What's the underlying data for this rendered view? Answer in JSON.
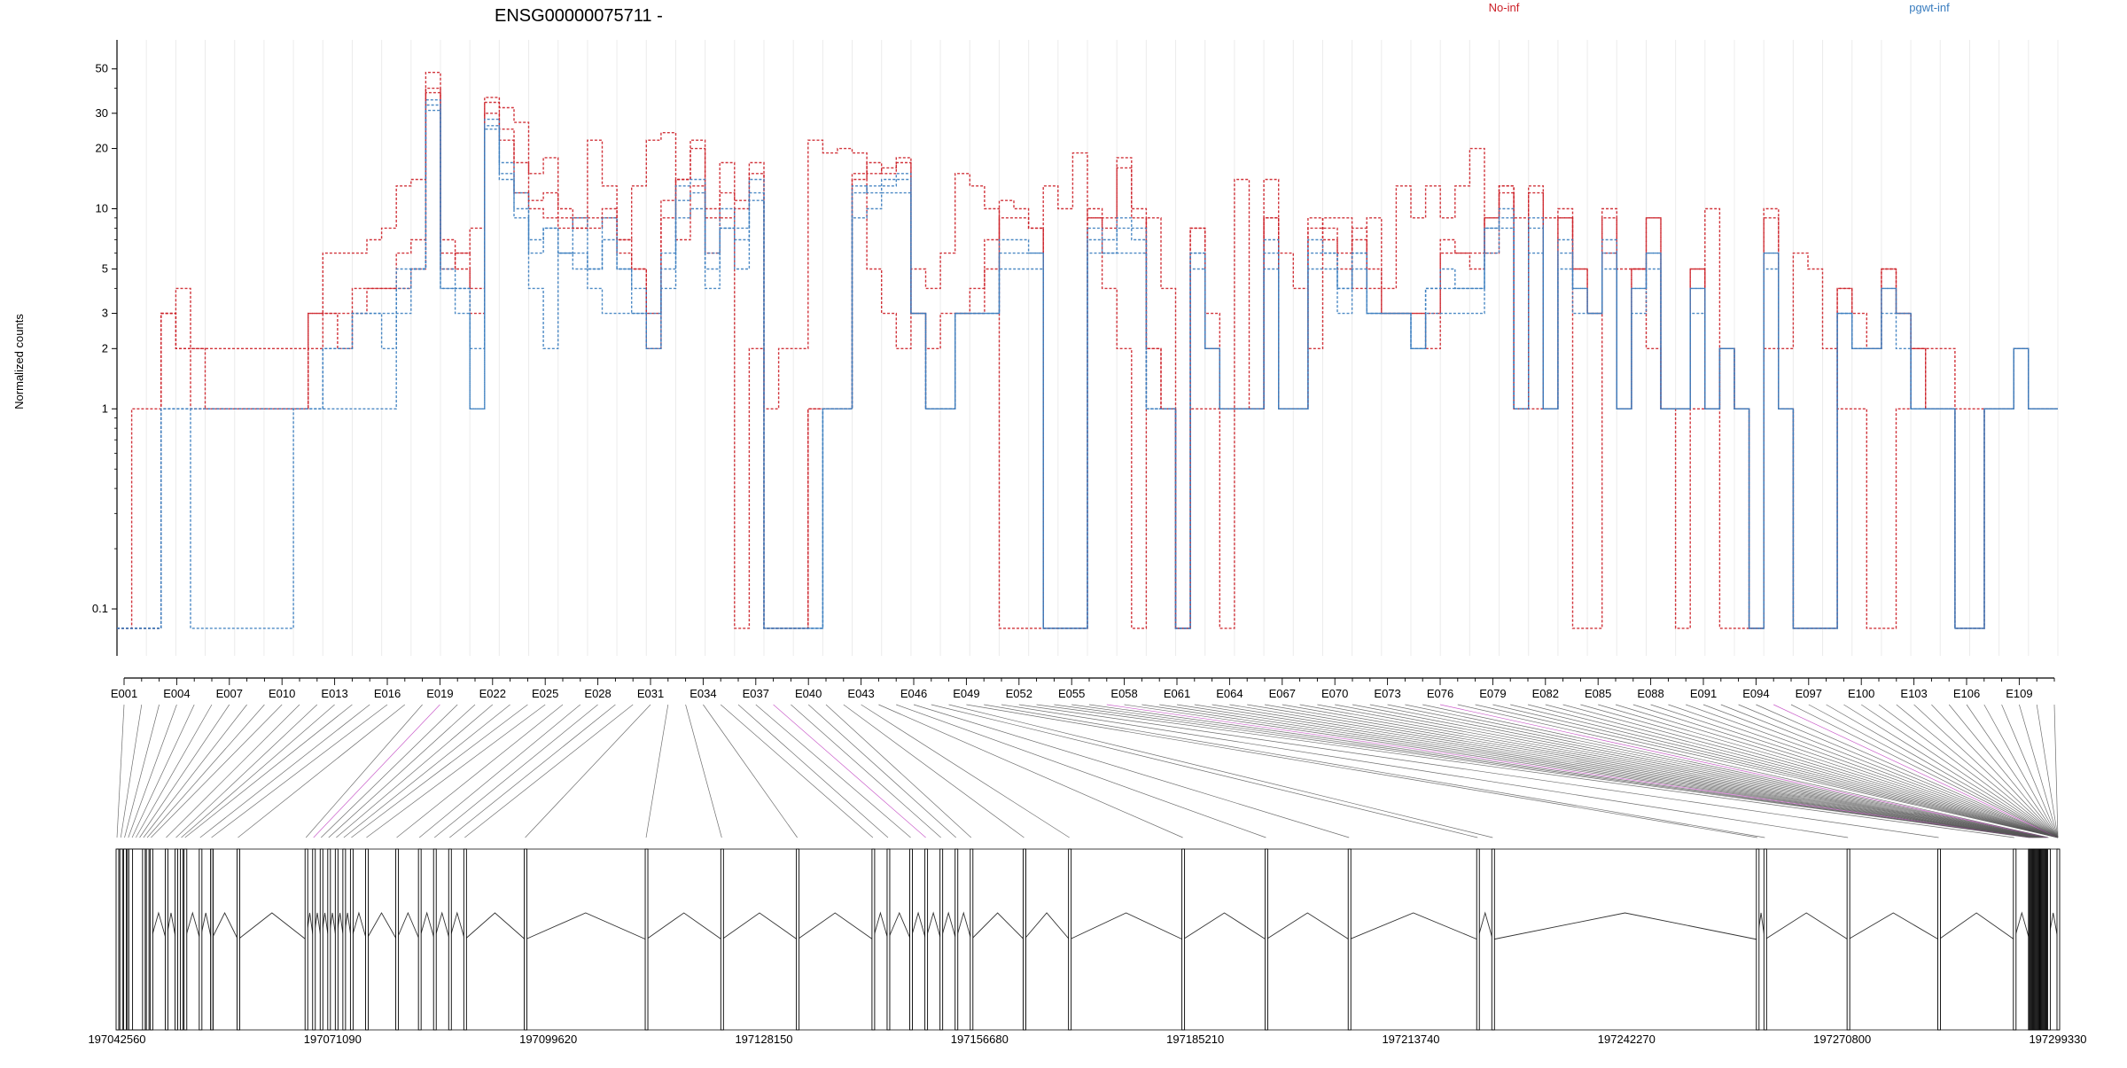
{
  "chart_data": {
    "type": "line",
    "title": "ENSG00000075711 -",
    "ylabel": "Normalized counts",
    "yscale": "log",
    "ylim": [
      0.07,
      65
    ],
    "yticks": [
      0.1,
      1,
      2,
      3,
      5,
      10,
      20,
      30,
      50
    ],
    "ytick_labels": [
      "0.1",
      "1",
      "2",
      "3",
      "5",
      "10",
      "20",
      "30",
      "50"
    ],
    "legend": [
      {
        "label": "No-inf",
        "color": "#cc1f27"
      },
      {
        "label": "pgwt-inf",
        "color": "#3a7dbf"
      }
    ],
    "exon_labels": [
      "E001",
      "E004",
      "E007",
      "E010",
      "E013",
      "E016",
      "E019",
      "E022",
      "E025",
      "E028",
      "E031",
      "E034",
      "E037",
      "E040",
      "E043",
      "E046",
      "E049",
      "E052",
      "E055",
      "E058",
      "E061",
      "E064",
      "E067",
      "E070",
      "E073",
      "E076",
      "E079",
      "E082",
      "E085",
      "E088",
      "E091",
      "E094",
      "E097",
      "E100",
      "E103",
      "E106",
      "E109"
    ],
    "genomic_coordinates": [
      "197042560",
      "197071090",
      "197099620",
      "197128150",
      "197156680",
      "197185210",
      "197213740",
      "197242270",
      "197270800",
      "197299330"
    ],
    "genomic_range": [
      197042560,
      197299330
    ],
    "series": [
      {
        "name": "No-inf",
        "color": "#cc1f27",
        "values": [
          0.08,
          0.08,
          0.08,
          3,
          2,
          2,
          2,
          2,
          2,
          2,
          2,
          2,
          2,
          3,
          3,
          2,
          4,
          4,
          4,
          4,
          5,
          38,
          6,
          5,
          3,
          34,
          25,
          12,
          10,
          9,
          8,
          8,
          8,
          9,
          6,
          5,
          3,
          9,
          14,
          22,
          6,
          9,
          10,
          15,
          0.08,
          0.08,
          0.08,
          1,
          1,
          1,
          14,
          15,
          16,
          18,
          3,
          1,
          1,
          3,
          3,
          5,
          9,
          9,
          8,
          0.08,
          0.08,
          0.08,
          9,
          8,
          16,
          9,
          2,
          1,
          0.08,
          8,
          2,
          1,
          1,
          1,
          9,
          1,
          1,
          9,
          7,
          6,
          8,
          5,
          3,
          3,
          3,
          2,
          6,
          6,
          5,
          9,
          13,
          1,
          12,
          1,
          9,
          5,
          3,
          9,
          1,
          5,
          9,
          1,
          1,
          5,
          1,
          2,
          1,
          0.08,
          9,
          1,
          0.08,
          0.08,
          0.08,
          4,
          3,
          2,
          5,
          3,
          2,
          1,
          1,
          0.08,
          0.08,
          1,
          1,
          2,
          1,
          1
        ]
      },
      {
        "name": "No-inf",
        "color": "#cc1f27",
        "values": [
          0.08,
          1,
          1,
          3,
          4,
          2,
          1,
          1,
          1,
          1,
          1,
          1,
          1,
          3,
          6,
          6,
          6,
          7,
          8,
          13,
          14,
          48,
          7,
          6,
          8,
          36,
          32,
          27,
          15,
          18,
          10,
          8,
          22,
          13,
          7,
          13,
          22,
          24,
          7,
          13,
          10,
          17,
          0.08,
          2,
          1,
          2,
          2,
          22,
          19,
          20,
          19,
          5,
          3,
          2,
          5,
          4,
          6,
          15,
          13,
          10,
          0.08,
          0.08,
          0.08,
          13,
          10,
          19,
          9,
          4,
          2,
          0.08,
          9,
          4,
          0.08,
          1,
          1,
          0.08,
          14,
          1,
          14,
          6,
          4,
          2,
          9,
          9,
          4,
          9,
          4,
          13,
          9,
          13,
          9,
          13,
          20,
          6,
          13,
          9,
          1,
          9,
          10,
          0.08,
          0.08,
          6,
          5,
          5,
          2,
          1,
          0.08,
          1,
          10,
          0.08,
          0.08,
          0.08,
          2,
          2,
          6,
          5,
          2,
          1,
          1,
          0.08,
          0.08,
          1,
          2,
          2,
          2,
          1,
          1
        ]
      },
      {
        "name": "No-inf",
        "color": "#cc1f27",
        "values": [
          0.08,
          0.08,
          0.08,
          3,
          2,
          1,
          1,
          1,
          1,
          1,
          1,
          1,
          1,
          2,
          3,
          3,
          3,
          4,
          4,
          6,
          7,
          40,
          5,
          6,
          4,
          30,
          22,
          17,
          11,
          12,
          9,
          9,
          9,
          10,
          7,
          5,
          2,
          11,
          14,
          20,
          9,
          12,
          11,
          17,
          0.08,
          0.08,
          0.08,
          1,
          1,
          1,
          15,
          17,
          15,
          17,
          3,
          2,
          3,
          3,
          4,
          7,
          11,
          10,
          8,
          0.08,
          0.08,
          0.08,
          10,
          9,
          18,
          10,
          2,
          1,
          0.08,
          8,
          3,
          1,
          1,
          1,
          9,
          1,
          1,
          8,
          8,
          5,
          7,
          4,
          3,
          3,
          3,
          3,
          7,
          6,
          6,
          9,
          12,
          1,
          13,
          1,
          9,
          5,
          3,
          10,
          1,
          5,
          9,
          1,
          1,
          5,
          1,
          2,
          1,
          0.08,
          10,
          1,
          0.08,
          0.08,
          0.08,
          4,
          2,
          2,
          5,
          3,
          2,
          1,
          1,
          0.08,
          0.08,
          1,
          1,
          2,
          1,
          1
        ]
      },
      {
        "name": "pgwt-inf",
        "color": "#3a7dbf",
        "values": [
          0.08,
          0.08,
          0.08,
          1,
          1,
          1,
          1,
          1,
          1,
          1,
          1,
          1,
          1,
          1,
          2,
          2,
          3,
          3,
          3,
          5,
          5,
          35,
          4,
          4,
          2,
          25,
          14,
          10,
          7,
          8,
          6,
          6,
          5,
          7,
          5,
          4,
          3,
          6,
          11,
          12,
          6,
          10,
          7,
          12,
          0.08,
          0.08,
          0.08,
          0.08,
          1,
          1,
          13,
          12,
          14,
          14,
          3,
          1,
          1,
          3,
          3,
          3,
          6,
          6,
          6,
          0.08,
          0.08,
          0.08,
          8,
          7,
          8,
          8,
          1,
          1,
          0.08,
          6,
          2,
          1,
          1,
          1,
          6,
          1,
          1,
          6,
          6,
          4,
          6,
          3,
          3,
          3,
          2,
          4,
          4,
          4,
          4,
          8,
          9,
          1,
          8,
          1,
          6,
          4,
          3,
          6,
          1,
          4,
          6,
          1,
          1,
          4,
          1,
          2,
          1,
          0.08,
          6,
          1,
          0.08,
          0.08,
          0.08,
          3,
          2,
          2,
          4,
          3,
          1,
          1,
          1,
          0.08,
          0.08,
          1,
          1,
          2,
          1,
          1
        ]
      },
      {
        "name": "pgwt-inf",
        "color": "#3a7dbf",
        "values": [
          0.08,
          0.08,
          0.08,
          1,
          1,
          0.08,
          0.08,
          0.08,
          0.08,
          0.08,
          0.08,
          0.08,
          1,
          1,
          2,
          2,
          3,
          3,
          2,
          4,
          5,
          31,
          5,
          4,
          1,
          28,
          17,
          12,
          6,
          8,
          6,
          5,
          5,
          9,
          5,
          3,
          2,
          5,
          13,
          14,
          5,
          8,
          8,
          14,
          0.08,
          0.08,
          0.08,
          0.08,
          1,
          1,
          12,
          13,
          13,
          15,
          3,
          1,
          1,
          3,
          3,
          3,
          7,
          7,
          6,
          0.08,
          0.08,
          0.08,
          7,
          6,
          9,
          7,
          1,
          1,
          0.08,
          6,
          2,
          1,
          1,
          1,
          7,
          1,
          1,
          7,
          6,
          4,
          6,
          3,
          3,
          3,
          2,
          4,
          5,
          4,
          4,
          8,
          10,
          1,
          9,
          1,
          7,
          4,
          3,
          7,
          1,
          4,
          6,
          1,
          1,
          4,
          1,
          2,
          1,
          0.08,
          6,
          1,
          0.08,
          0.08,
          0.08,
          3,
          2,
          2,
          4,
          3,
          1,
          1,
          1,
          0.08,
          0.08,
          1,
          1,
          2,
          1,
          1
        ]
      },
      {
        "name": "pgwt-inf",
        "color": "#3a7dbf",
        "values": [
          0.08,
          0.08,
          0.08,
          1,
          1,
          1,
          1,
          1,
          1,
          1,
          1,
          1,
          1,
          1,
          1,
          1,
          1,
          1,
          1,
          3,
          5,
          33,
          4,
          3,
          1,
          26,
          15,
          9,
          4,
          2,
          6,
          9,
          4,
          3,
          3,
          3,
          2,
          4,
          9,
          10,
          4,
          8,
          5,
          11,
          0.08,
          0.08,
          0.08,
          0.08,
          1,
          1,
          9,
          10,
          12,
          12,
          3,
          1,
          1,
          3,
          3,
          3,
          5,
          5,
          5,
          0.08,
          0.08,
          0.08,
          6,
          6,
          6,
          6,
          1,
          1,
          0.08,
          5,
          2,
          1,
          1,
          1,
          5,
          1,
          1,
          5,
          5,
          3,
          5,
          3,
          3,
          3,
          2,
          3,
          3,
          3,
          3,
          6,
          8,
          1,
          6,
          1,
          5,
          3,
          3,
          5,
          1,
          3,
          5,
          1,
          1,
          3,
          1,
          2,
          1,
          0.08,
          5,
          1,
          0.08,
          0.08,
          0.08,
          3,
          2,
          2,
          3,
          2,
          1,
          1,
          1,
          0.08,
          0.08,
          1,
          1,
          2,
          1,
          1
        ]
      }
    ]
  }
}
